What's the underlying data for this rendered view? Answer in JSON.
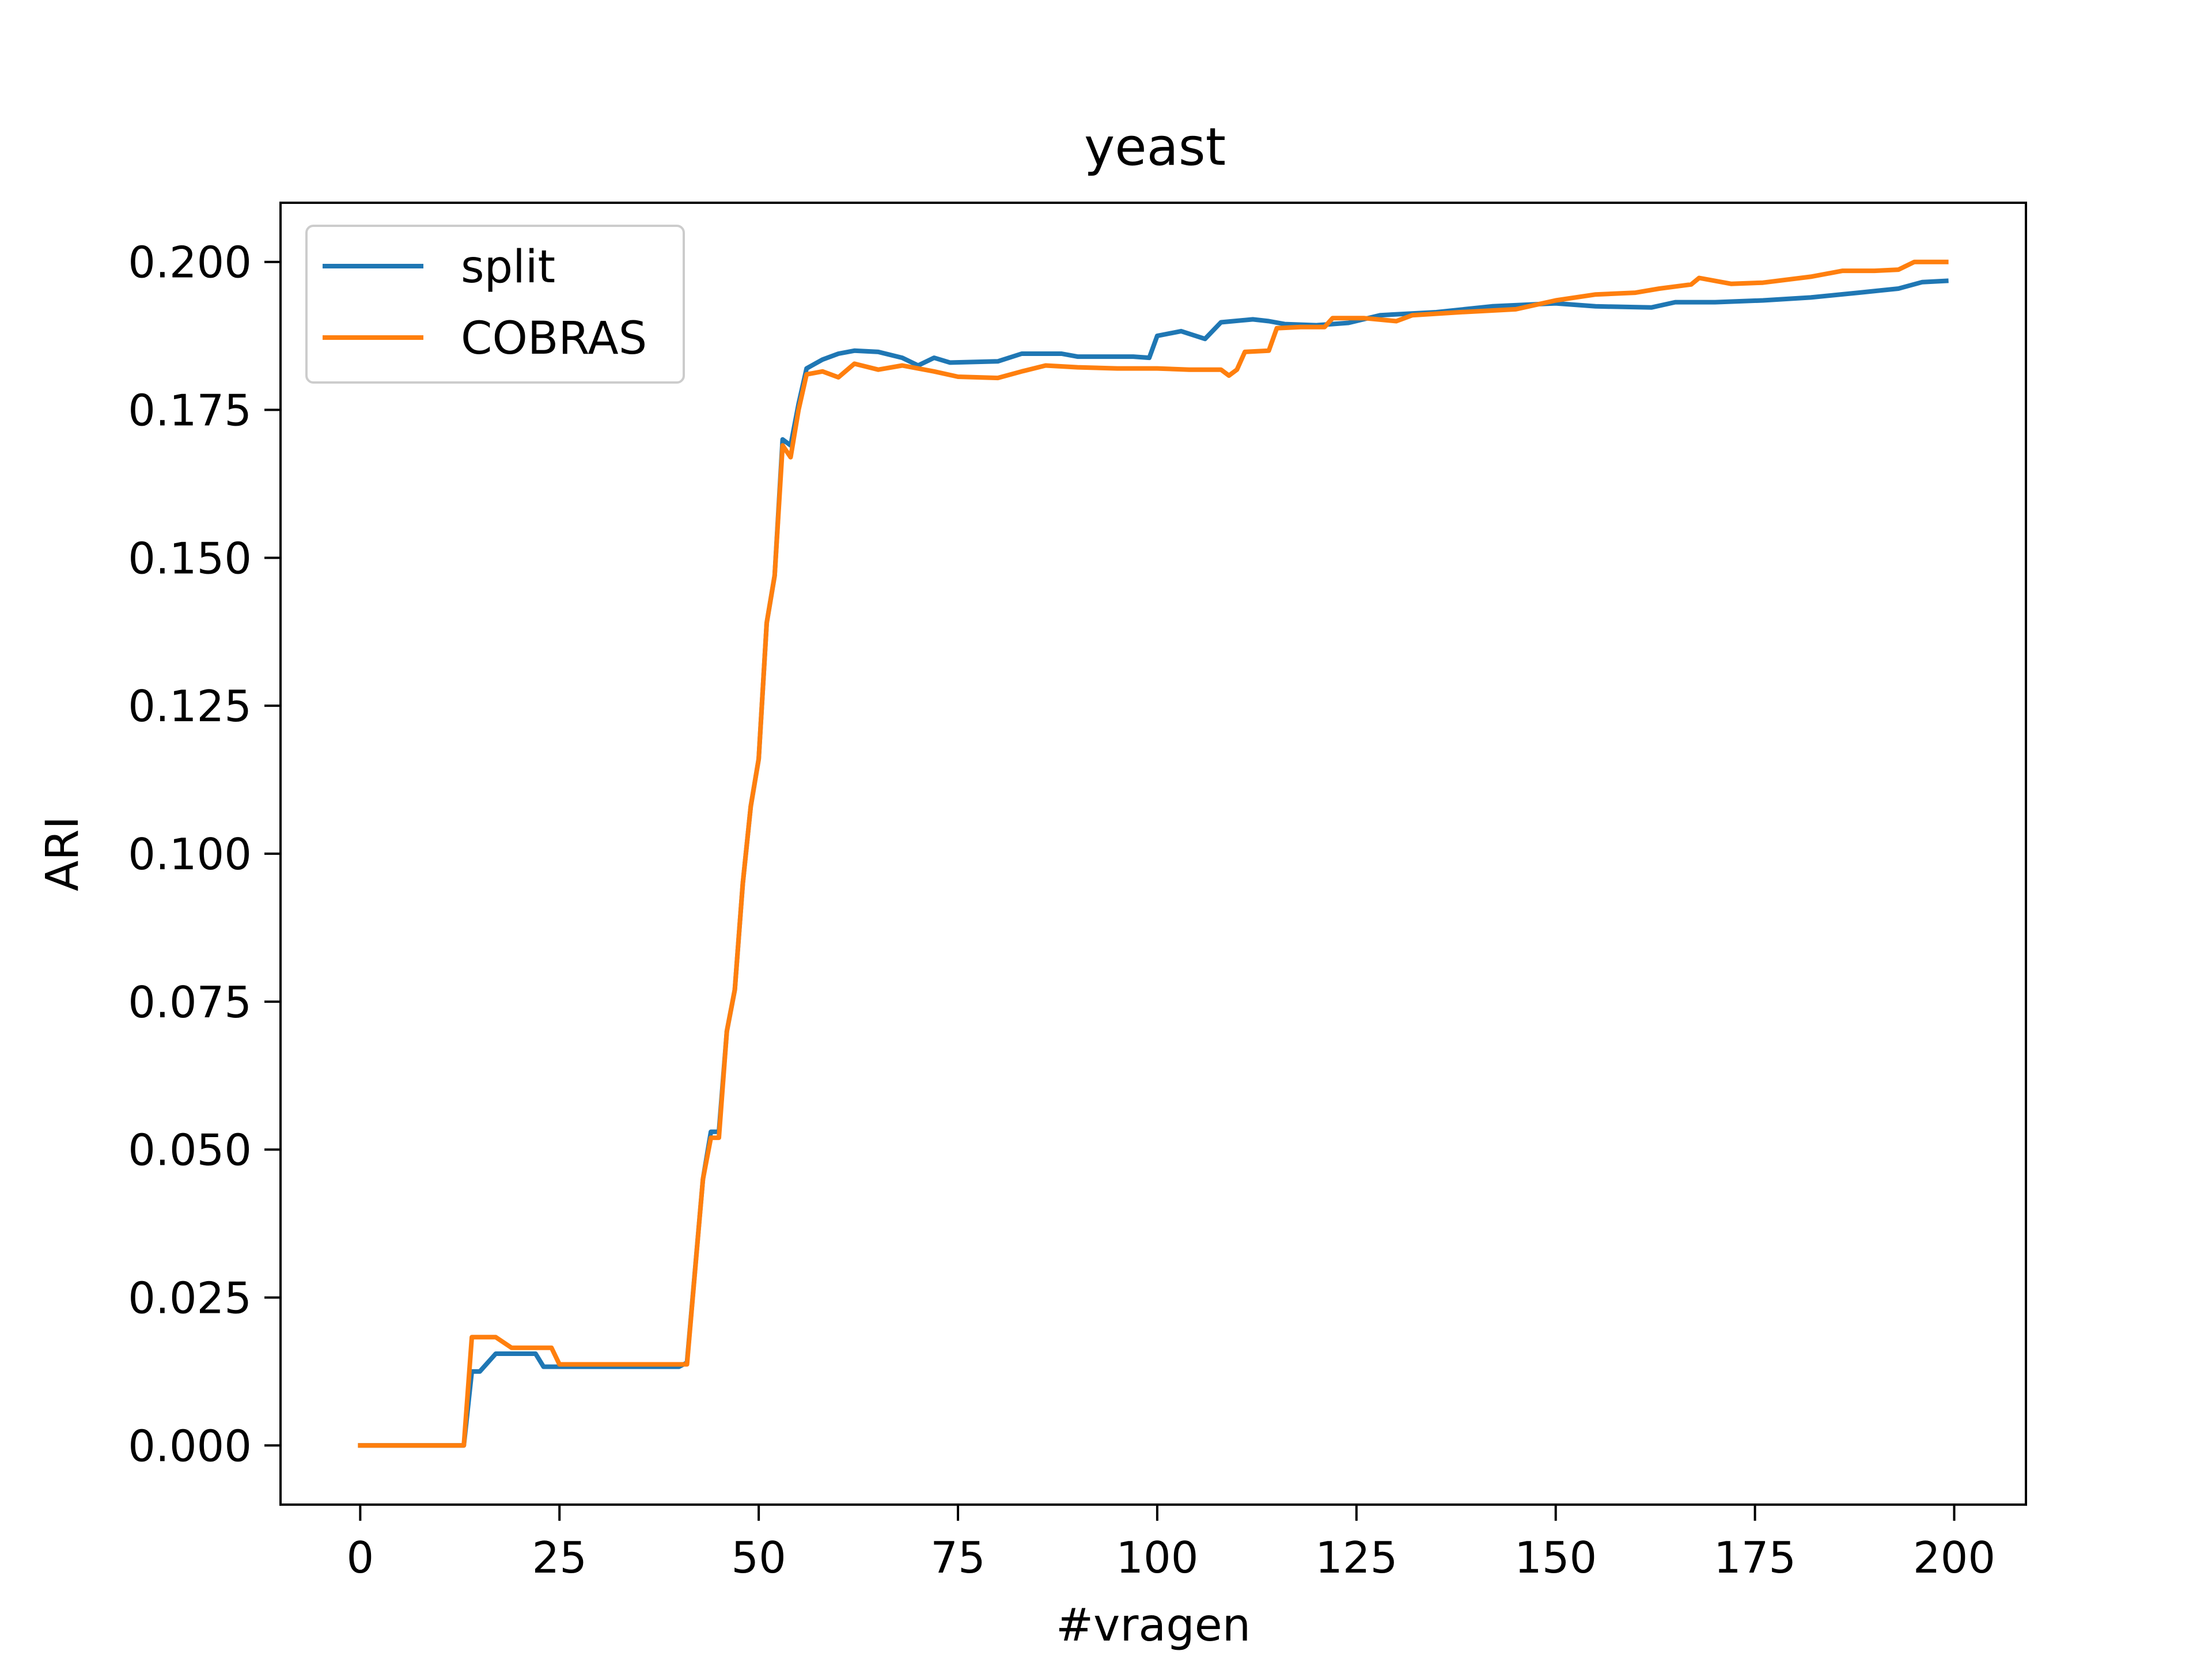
{
  "chart_data": {
    "type": "line",
    "title": "yeast",
    "xlabel": "#vragen",
    "ylabel": "ARI",
    "xlim": [
      -10,
      209
    ],
    "ylim": [
      -0.01,
      0.21
    ],
    "xticks": [
      0,
      25,
      50,
      75,
      100,
      125,
      150,
      175,
      200
    ],
    "xtick_labels": [
      "0",
      "25",
      "50",
      "75",
      "100",
      "125",
      "150",
      "175",
      "200"
    ],
    "yticks": [
      0.0,
      0.025,
      0.05,
      0.075,
      0.1,
      0.125,
      0.15,
      0.175,
      0.2
    ],
    "ytick_labels": [
      "0.000",
      "0.025",
      "0.050",
      "0.075",
      "0.100",
      "0.125",
      "0.150",
      "0.175",
      "0.200"
    ],
    "grid": false,
    "legend_position": "upper-left",
    "series": [
      {
        "name": "split",
        "color": "#1f77b4",
        "points": [
          [
            0,
            0.0
          ],
          [
            13,
            0.0
          ],
          [
            14,
            0.0125
          ],
          [
            15,
            0.0125
          ],
          [
            17,
            0.0155
          ],
          [
            22,
            0.0155
          ],
          [
            23,
            0.0133
          ],
          [
            40,
            0.0133
          ],
          [
            41,
            0.014
          ],
          [
            43,
            0.045
          ],
          [
            44,
            0.053
          ],
          [
            45,
            0.053
          ],
          [
            46,
            0.07
          ],
          [
            47,
            0.077
          ],
          [
            48,
            0.095
          ],
          [
            49,
            0.108
          ],
          [
            50,
            0.116
          ],
          [
            51,
            0.139
          ],
          [
            52,
            0.147
          ],
          [
            53,
            0.17
          ],
          [
            54,
            0.169
          ],
          [
            55,
            0.176
          ],
          [
            56,
            0.182
          ],
          [
            58,
            0.1835
          ],
          [
            60,
            0.1845
          ],
          [
            62,
            0.185
          ],
          [
            65,
            0.1848
          ],
          [
            68,
            0.1838
          ],
          [
            70,
            0.1825
          ],
          [
            72,
            0.1838
          ],
          [
            74,
            0.183
          ],
          [
            80,
            0.1832
          ],
          [
            83,
            0.1845
          ],
          [
            88,
            0.1845
          ],
          [
            90,
            0.184
          ],
          [
            97,
            0.184
          ],
          [
            99,
            0.1838
          ],
          [
            100,
            0.1875
          ],
          [
            103,
            0.1883
          ],
          [
            106,
            0.187
          ],
          [
            108,
            0.1898
          ],
          [
            112,
            0.1903
          ],
          [
            114,
            0.19
          ],
          [
            116,
            0.1895
          ],
          [
            120,
            0.1893
          ],
          [
            124,
            0.1897
          ],
          [
            128,
            0.191
          ],
          [
            135,
            0.1915
          ],
          [
            142,
            0.1925
          ],
          [
            150,
            0.193
          ],
          [
            155,
            0.1925
          ],
          [
            162,
            0.1923
          ],
          [
            165,
            0.1932
          ],
          [
            170,
            0.1932
          ],
          [
            176,
            0.1935
          ],
          [
            182,
            0.194
          ],
          [
            188,
            0.1948
          ],
          [
            193,
            0.1955
          ],
          [
            196,
            0.1966
          ],
          [
            199,
            0.1968
          ]
        ]
      },
      {
        "name": "COBRAS",
        "color": "#ff7f0e",
        "points": [
          [
            0,
            0.0
          ],
          [
            13,
            0.0
          ],
          [
            14,
            0.0183
          ],
          [
            17,
            0.0183
          ],
          [
            19,
            0.0165
          ],
          [
            24,
            0.0165
          ],
          [
            25,
            0.0137
          ],
          [
            41,
            0.0137
          ],
          [
            43,
            0.045
          ],
          [
            44,
            0.052
          ],
          [
            45,
            0.052
          ],
          [
            46,
            0.07
          ],
          [
            47,
            0.077
          ],
          [
            48,
            0.095
          ],
          [
            49,
            0.108
          ],
          [
            50,
            0.116
          ],
          [
            51,
            0.139
          ],
          [
            52,
            0.147
          ],
          [
            53,
            0.169
          ],
          [
            54,
            0.167
          ],
          [
            55,
            0.175
          ],
          [
            56,
            0.181
          ],
          [
            58,
            0.1815
          ],
          [
            60,
            0.1805
          ],
          [
            62,
            0.1828
          ],
          [
            65,
            0.1818
          ],
          [
            68,
            0.1825
          ],
          [
            72,
            0.1815
          ],
          [
            75,
            0.1806
          ],
          [
            80,
            0.1804
          ],
          [
            83,
            0.1815
          ],
          [
            86,
            0.1825
          ],
          [
            90,
            0.1822
          ],
          [
            95,
            0.182
          ],
          [
            100,
            0.182
          ],
          [
            104,
            0.1818
          ],
          [
            108,
            0.1818
          ],
          [
            109,
            0.1808
          ],
          [
            110,
            0.1818
          ],
          [
            111,
            0.1848
          ],
          [
            114,
            0.185
          ],
          [
            115,
            0.1888
          ],
          [
            118,
            0.189
          ],
          [
            121,
            0.189
          ],
          [
            122,
            0.1905
          ],
          [
            126,
            0.1905
          ],
          [
            130,
            0.19
          ],
          [
            132,
            0.191
          ],
          [
            138,
            0.1915
          ],
          [
            145,
            0.192
          ],
          [
            150,
            0.1935
          ],
          [
            155,
            0.1945
          ],
          [
            160,
            0.1948
          ],
          [
            163,
            0.1955
          ],
          [
            167,
            0.1962
          ],
          [
            168,
            0.1973
          ],
          [
            172,
            0.1963
          ],
          [
            176,
            0.1965
          ],
          [
            182,
            0.1975
          ],
          [
            186,
            0.1985
          ],
          [
            190,
            0.1985
          ],
          [
            193,
            0.1987
          ],
          [
            195,
            0.2
          ],
          [
            199,
            0.2
          ]
        ]
      }
    ]
  }
}
